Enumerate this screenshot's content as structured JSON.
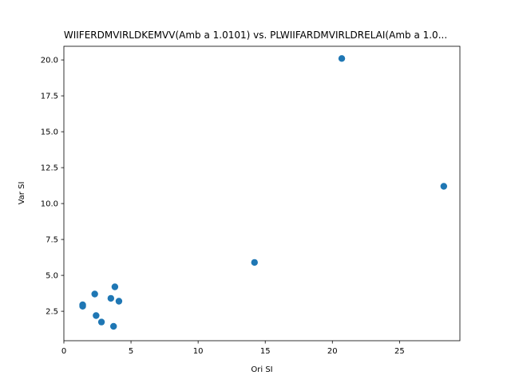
{
  "chart_data": {
    "type": "scatter",
    "title": "WIIFERDMVIRLDKEMVV(Amb a 1.0101) vs. PLWIIFARDMVIRLDRELAI(Amb a 1.0...",
    "xlabel": "Ori SI",
    "ylabel": "Var SI",
    "xlim": [
      0,
      29.5
    ],
    "ylim": [
      0.45,
      20.95
    ],
    "xticks": [
      0,
      5,
      10,
      15,
      20,
      25
    ],
    "xtick_labels": [
      "0",
      "5",
      "10",
      "15",
      "20",
      "25"
    ],
    "yticks": [
      2.5,
      5.0,
      7.5,
      10.0,
      12.5,
      15.0,
      17.5,
      20.0
    ],
    "ytick_labels": [
      "2.5",
      "5.0",
      "7.5",
      "10.0",
      "12.5",
      "15.0",
      "17.5",
      "20.0"
    ],
    "grid": false,
    "marker_color": "#1f77b4",
    "points": [
      {
        "x": 20.7,
        "y": 20.1
      },
      {
        "x": 28.3,
        "y": 11.2
      },
      {
        "x": 14.2,
        "y": 5.9
      },
      {
        "x": 3.8,
        "y": 4.2
      },
      {
        "x": 2.3,
        "y": 3.7
      },
      {
        "x": 3.5,
        "y": 3.4
      },
      {
        "x": 4.1,
        "y": 3.2
      },
      {
        "x": 1.4,
        "y": 2.95
      },
      {
        "x": 1.4,
        "y": 2.85
      },
      {
        "x": 2.4,
        "y": 2.2
      },
      {
        "x": 2.8,
        "y": 1.75
      },
      {
        "x": 3.7,
        "y": 1.45
      }
    ]
  }
}
